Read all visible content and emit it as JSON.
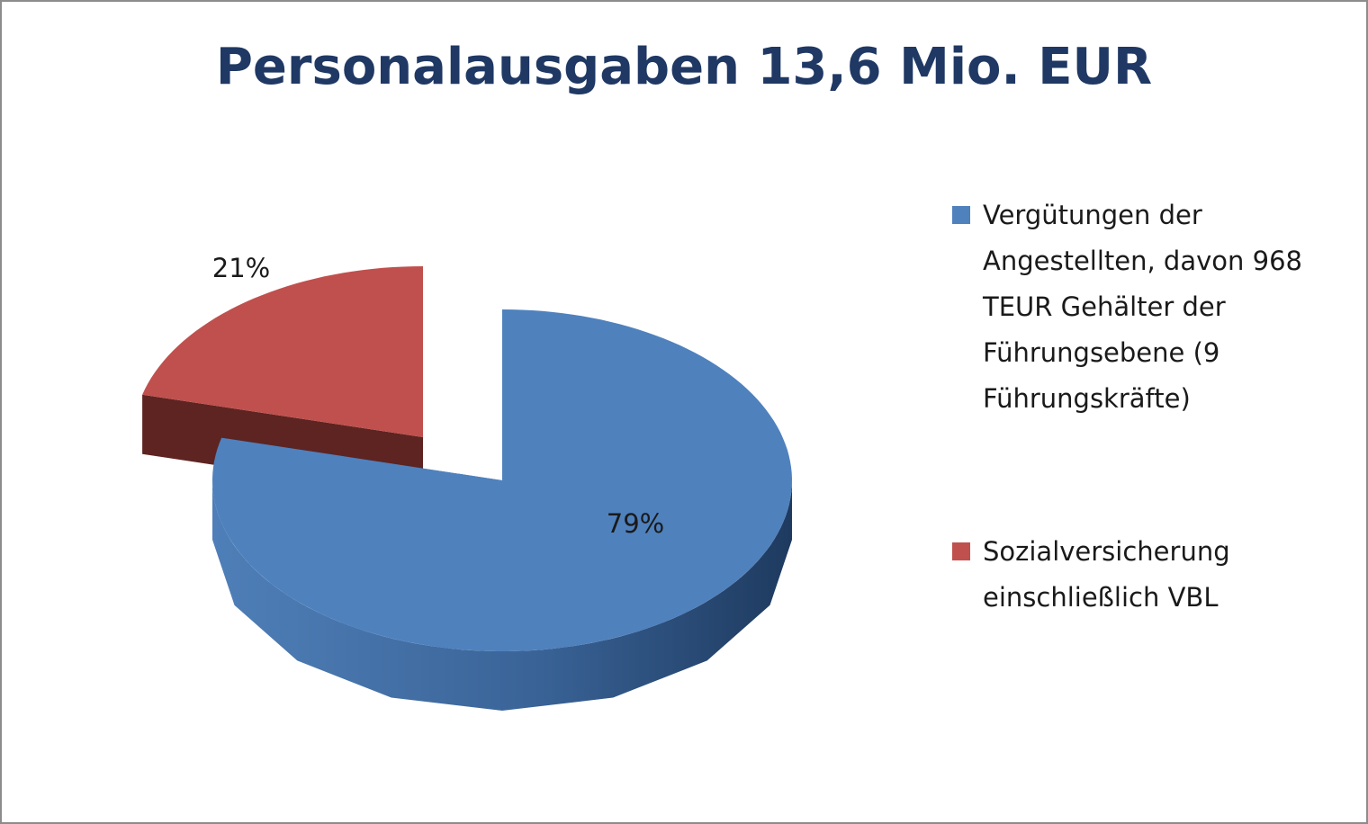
{
  "chart_data": {
    "type": "pie",
    "title": "Personalausgaben 13,6 Mio. EUR",
    "unit": "%",
    "slices": [
      {
        "name": "Vergütungen der Angestellten, davon 968 TEUR Gehälter der Führungsebene (9 Führungskräfte)",
        "value": 79,
        "label": "79%",
        "color": "#4f81bd"
      },
      {
        "name": "Sozialversicherung einschließlich VBL",
        "value": 21,
        "label": "21%",
        "color": "#c0504d"
      }
    ],
    "exploded": true,
    "three_d": true,
    "legend_position": "right"
  }
}
